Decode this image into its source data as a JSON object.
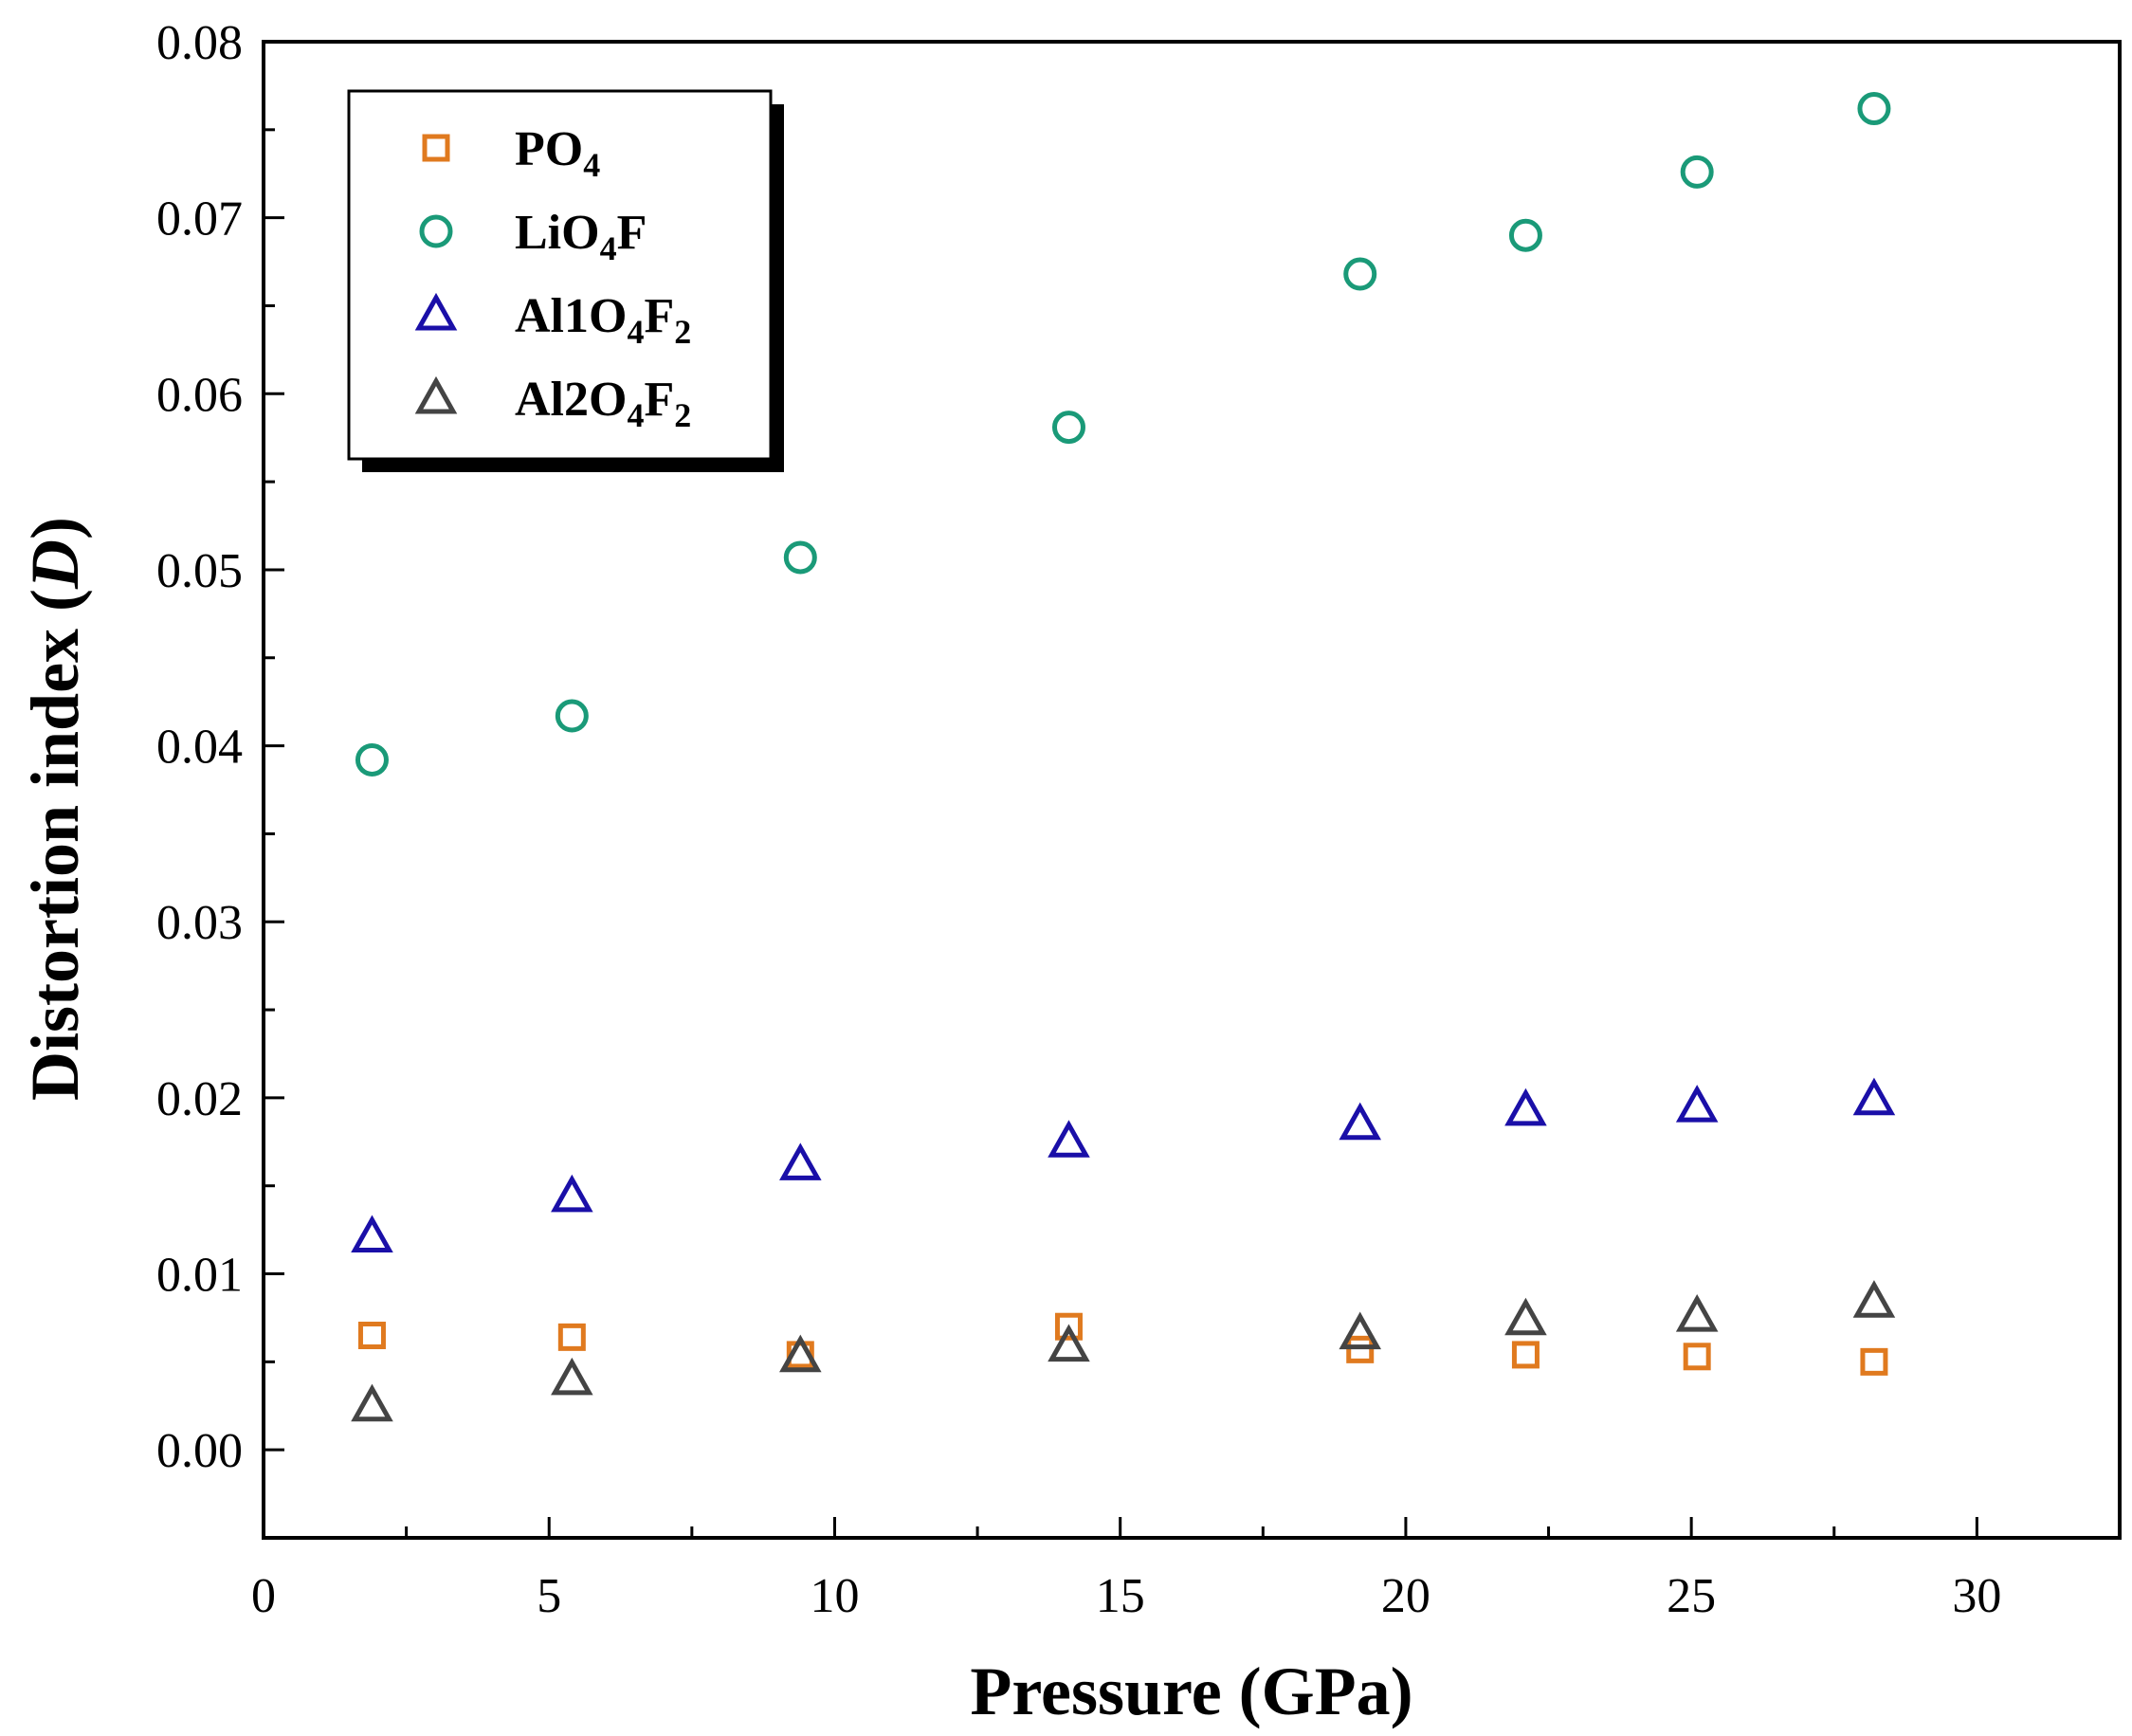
{
  "chart_data": {
    "type": "scatter",
    "title": "",
    "xlabel": "Pressure (GPa)",
    "ylabel_main": "Distortion index (",
    "ylabel_var": "D",
    "ylabel_close": ")",
    "xlim": [
      0,
      32.5
    ],
    "ylim": [
      -0.005,
      0.08
    ],
    "xticks": [
      0,
      5,
      10,
      15,
      20,
      25,
      30
    ],
    "xtick_labels": [
      "0",
      "5",
      "10",
      "15",
      "20",
      "25",
      "30"
    ],
    "yticks": [
      0.0,
      0.01,
      0.02,
      0.03,
      0.04,
      0.05,
      0.06,
      0.07,
      0.08
    ],
    "ytick_labels": [
      "0.00",
      "0.01",
      "0.02",
      "0.03",
      "0.04",
      "0.05",
      "0.06",
      "0.07",
      "0.08"
    ],
    "grid": false,
    "legend_position": "top-left",
    "series": [
      {
        "name": "PO4",
        "legend": {
          "base": "PO",
          "sub1": "4",
          "mid": "",
          "sub2": ""
        },
        "marker": "square",
        "color": "#E07A1F",
        "x": [
          1.9,
          5.4,
          9.4,
          14.1,
          19.2,
          22.1,
          25.1,
          28.2
        ],
        "y": [
          0.0065,
          0.0064,
          0.0054,
          0.007,
          0.0057,
          0.0054,
          0.0053,
          0.005
        ]
      },
      {
        "name": "LiO4F",
        "legend": {
          "base": "LiO",
          "sub1": "4",
          "mid": "F",
          "sub2": ""
        },
        "marker": "circle",
        "color": "#1A9A78",
        "x": [
          1.9,
          5.4,
          9.4,
          14.1,
          19.2,
          22.1,
          25.1,
          28.2
        ],
        "y": [
          0.0392,
          0.0417,
          0.0507,
          0.0581,
          0.0668,
          0.069,
          0.0726,
          0.0762
        ]
      },
      {
        "name": "Al1O4F2",
        "legend": {
          "base": "Al1O",
          "sub1": "4",
          "mid": "F",
          "sub2": "2"
        },
        "marker": "triangle",
        "color": "#1A0FA8",
        "x": [
          1.9,
          5.4,
          9.4,
          14.1,
          19.2,
          22.1,
          25.1,
          28.2
        ],
        "y": [
          0.0121,
          0.0144,
          0.0162,
          0.0175,
          0.0185,
          0.0193,
          0.0195,
          0.0199
        ]
      },
      {
        "name": "Al2O4F2",
        "legend": {
          "base": "Al2O",
          "sub1": "4",
          "mid": "F",
          "sub2": "2"
        },
        "marker": "triangle",
        "color": "#444444",
        "x": [
          1.9,
          5.4,
          9.4,
          14.1,
          19.2,
          22.1,
          25.1,
          28.2
        ],
        "y": [
          0.0025,
          0.004,
          0.0053,
          0.0059,
          0.0066,
          0.0074,
          0.0076,
          0.0084
        ]
      }
    ]
  }
}
